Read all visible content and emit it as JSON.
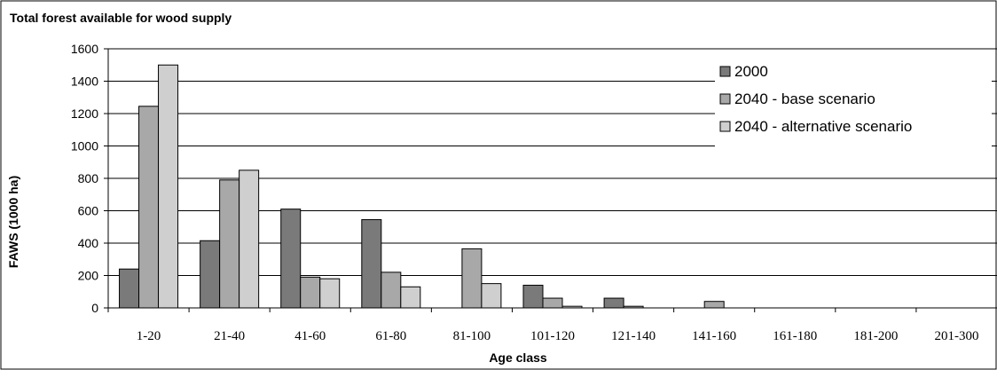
{
  "chart_data": {
    "type": "bar",
    "title": "Total forest available for wood supply",
    "xlabel": "Age class",
    "ylabel": "FAWS (1000 ha)",
    "ylim": [
      0,
      1600
    ],
    "yticks": [
      0,
      200,
      400,
      600,
      800,
      1000,
      1200,
      1400,
      1600
    ],
    "grid": true,
    "legend_position": "top-right",
    "categories": [
      "1-20",
      "21-40",
      "41-60",
      "61-80",
      "81-100",
      "101-120",
      "121-140",
      "141-160",
      "161-180",
      "181-200",
      "201-300"
    ],
    "series": [
      {
        "name": "2000",
        "color": "#7a7a7a",
        "values": [
          240,
          415,
          610,
          545,
          0,
          140,
          60,
          0,
          0,
          0,
          0
        ]
      },
      {
        "name": "2040 - base scenario",
        "color": "#a8a8a8",
        "values": [
          1245,
          790,
          190,
          220,
          365,
          60,
          10,
          40,
          0,
          0,
          0
        ]
      },
      {
        "name": "2040 - alternative scenario",
        "color": "#cfcfcf",
        "values": [
          1500,
          850,
          180,
          130,
          150,
          10,
          0,
          0,
          0,
          0,
          0
        ]
      }
    ],
    "note_81_100": "values follow visual bar positions"
  }
}
